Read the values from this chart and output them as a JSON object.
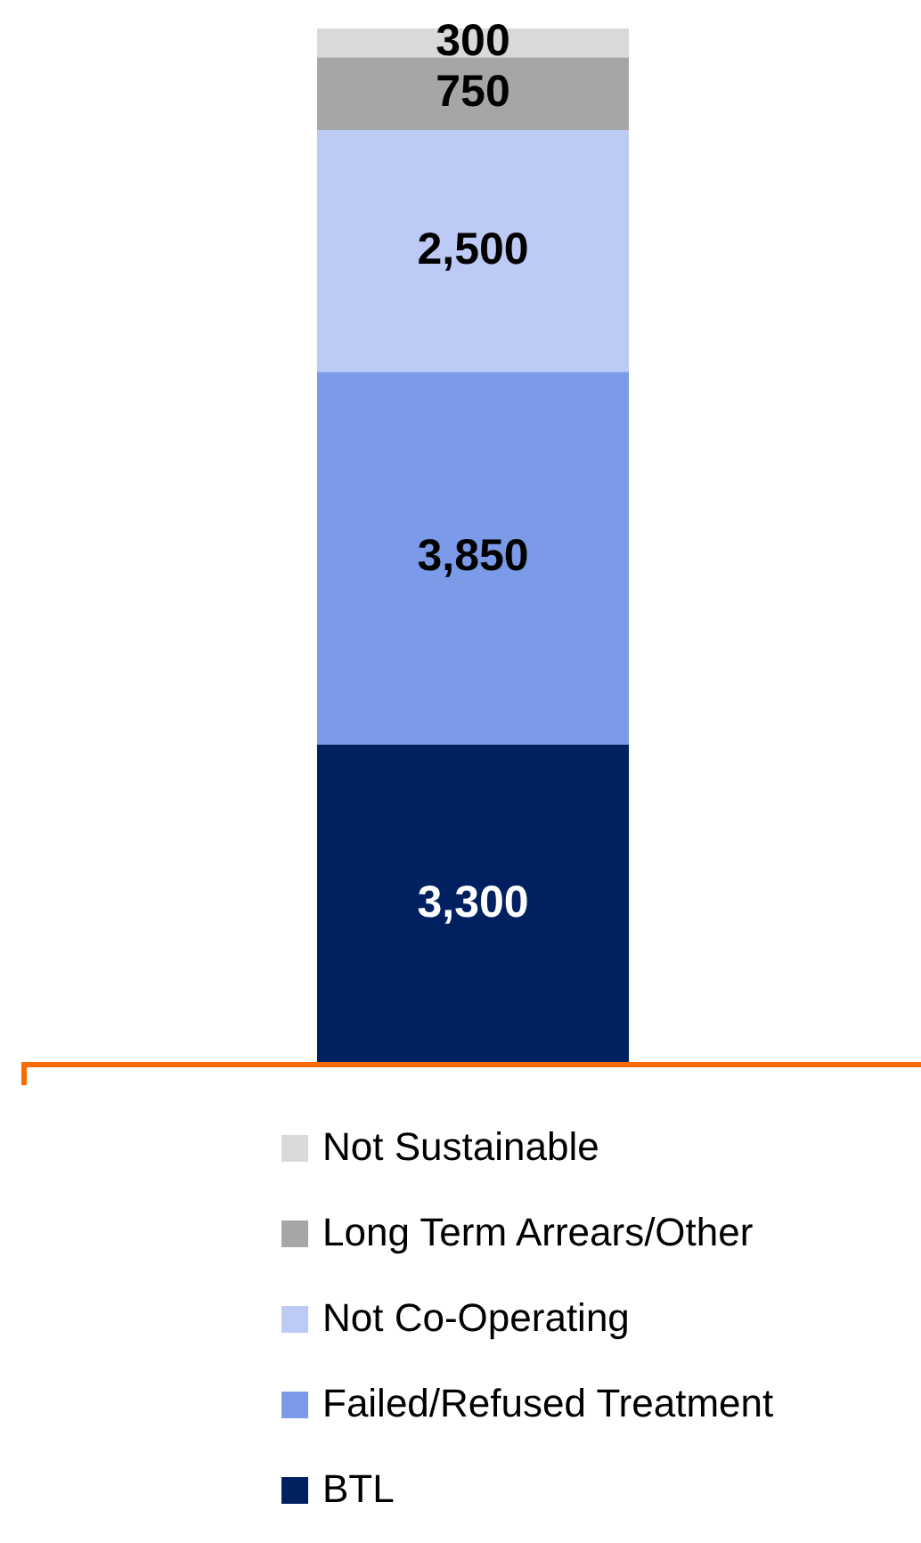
{
  "chart_data": {
    "type": "bar",
    "stacked": true,
    "categories": [
      null
    ],
    "legend": "bottom",
    "series": [
      {
        "name": "BTL",
        "color": "#002060",
        "values": [
          3300
        ],
        "value_labels": [
          "3,300"
        ]
      },
      {
        "name": "Failed/Refused Treatment",
        "color": "#7b9be8",
        "values": [
          3850
        ],
        "value_labels": [
          "3,850"
        ]
      },
      {
        "name": "Not Co-Operating",
        "color": "#bccaf5",
        "values": [
          2500
        ],
        "value_labels": [
          "2,500"
        ]
      },
      {
        "name": "Long Term Arrears/Other",
        "color": "#a6a6a6",
        "values": [
          750
        ],
        "value_labels": [
          "750"
        ]
      },
      {
        "name": "Not Sustainable",
        "color": "#d9d9d9",
        "values": [
          300
        ],
        "value_labels": [
          "300"
        ]
      }
    ]
  }
}
